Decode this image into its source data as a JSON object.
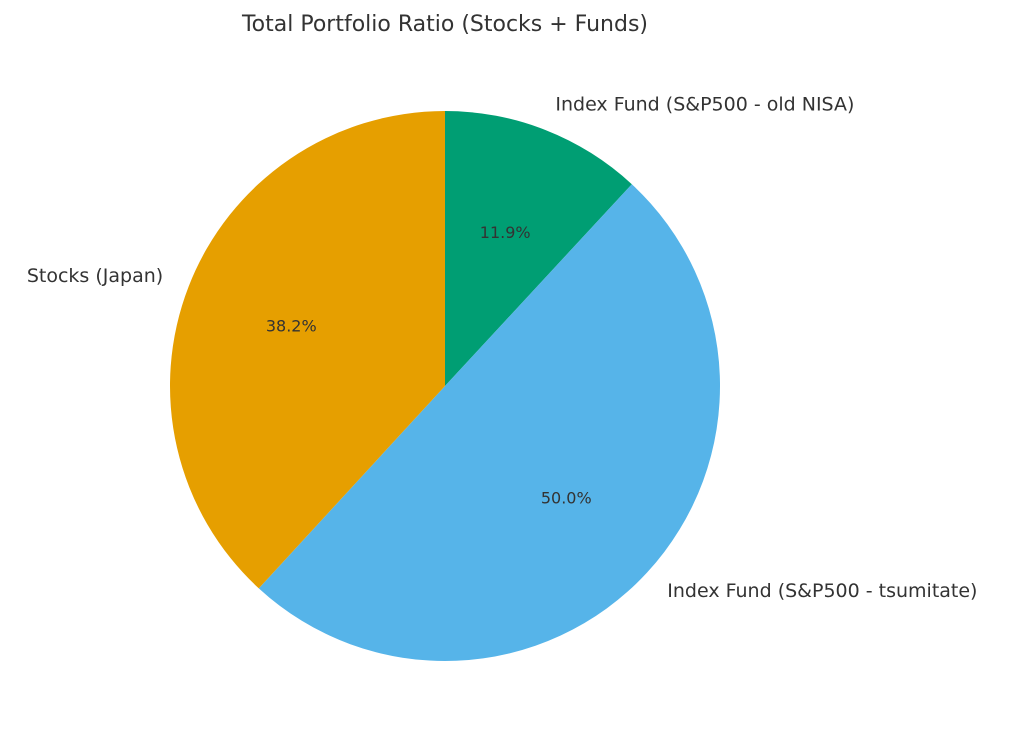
{
  "chart_data": {
    "type": "pie",
    "title": "Total Portfolio Ratio (Stocks + Funds)",
    "start_angle_deg": 90,
    "direction": "clockwise",
    "slices": [
      {
        "label": "Index Fund (S&P500 - old NISA)",
        "value": 11.9,
        "pct_label": "11.9%",
        "color": "#009E73"
      },
      {
        "label": "Index Fund (S&P500 - tsumitate)",
        "value": 50.0,
        "pct_label": "50.0%",
        "color": "#56B4E9"
      },
      {
        "label": "Stocks (Japan)",
        "value": 38.2,
        "pct_label": "38.2%",
        "color": "#E69F00"
      }
    ]
  }
}
